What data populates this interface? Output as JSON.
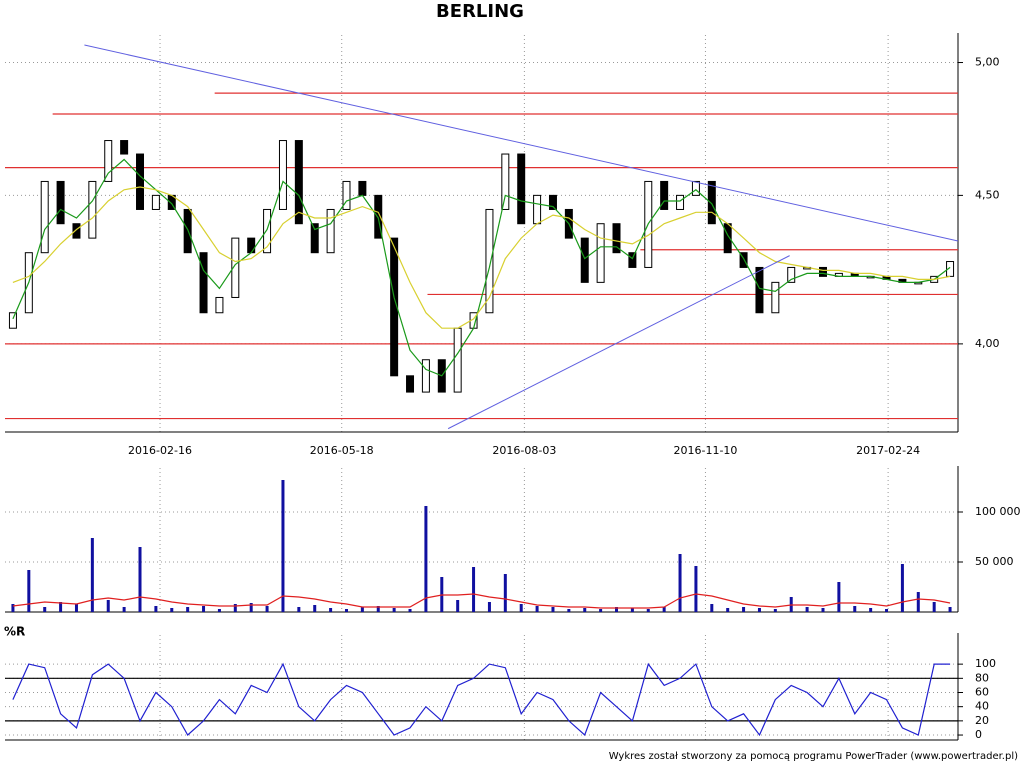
{
  "chart_data": [
    {
      "type": "candlestick",
      "title": "BERLING",
      "x": [
        0,
        1,
        2,
        3,
        4,
        5,
        6,
        7,
        8,
        9,
        10,
        11,
        12,
        13,
        14,
        15,
        16,
        17,
        18,
        19,
        20,
        21,
        22,
        23,
        24,
        25,
        26,
        27,
        28,
        29,
        30,
        31,
        32,
        33,
        34,
        35,
        36,
        37,
        38,
        39,
        40,
        41,
        42,
        43,
        44,
        45,
        46,
        47,
        48,
        49,
        50,
        51,
        52,
        53,
        54,
        55,
        56,
        57,
        58,
        59
      ],
      "open": [
        4.05,
        4.1,
        4.3,
        4.55,
        4.4,
        4.35,
        4.55,
        4.7,
        4.65,
        4.45,
        4.5,
        4.45,
        4.3,
        4.1,
        4.15,
        4.35,
        4.3,
        4.45,
        4.7,
        4.4,
        4.3,
        4.45,
        4.55,
        4.5,
        4.35,
        3.9,
        3.85,
        3.95,
        3.85,
        4.05,
        4.1,
        4.45,
        4.65,
        4.4,
        4.5,
        4.45,
        4.35,
        4.2,
        4.4,
        4.3,
        4.25,
        4.55,
        4.45,
        4.5,
        4.55,
        4.4,
        4.3,
        4.25,
        4.1,
        4.2,
        4.25,
        4.25,
        4.22,
        4.23,
        4.22,
        4.22,
        4.21,
        4.2,
        4.2,
        4.22
      ],
      "close": [
        4.1,
        4.3,
        4.55,
        4.4,
        4.35,
        4.55,
        4.7,
        4.65,
        4.45,
        4.5,
        4.45,
        4.3,
        4.1,
        4.15,
        4.35,
        4.3,
        4.45,
        4.7,
        4.4,
        4.3,
        4.45,
        4.55,
        4.5,
        4.35,
        3.9,
        3.85,
        3.95,
        3.85,
        4.05,
        4.1,
        4.45,
        4.65,
        4.4,
        4.5,
        4.45,
        4.35,
        4.2,
        4.4,
        4.3,
        4.25,
        4.55,
        4.45,
        4.5,
        4.55,
        4.4,
        4.3,
        4.25,
        4.1,
        4.2,
        4.25,
        4.25,
        4.22,
        4.23,
        4.22,
        4.22,
        4.21,
        4.2,
        4.2,
        4.22,
        4.27
      ],
      "up_color": "#ffffff",
      "down_color": "#000000",
      "lines": [
        {
          "color": "#1a9a1a",
          "values": [
            4.08,
            4.2,
            4.38,
            4.45,
            4.42,
            4.48,
            4.58,
            4.63,
            4.57,
            4.52,
            4.47,
            4.38,
            4.24,
            4.18,
            4.26,
            4.3,
            4.38,
            4.55,
            4.5,
            4.38,
            4.4,
            4.48,
            4.5,
            4.42,
            4.15,
            3.98,
            3.92,
            3.9,
            3.97,
            4.05,
            4.25,
            4.5,
            4.48,
            4.47,
            4.46,
            4.4,
            4.28,
            4.32,
            4.32,
            4.28,
            4.4,
            4.48,
            4.48,
            4.52,
            4.47,
            4.36,
            4.28,
            4.18,
            4.17,
            4.21,
            4.23,
            4.23,
            4.22,
            4.22,
            4.22,
            4.21,
            4.2,
            4.2,
            4.21,
            4.25
          ]
        },
        {
          "color": "#d8d030",
          "values": [
            4.2,
            4.22,
            4.27,
            4.33,
            4.38,
            4.42,
            4.48,
            4.52,
            4.53,
            4.52,
            4.5,
            4.46,
            4.38,
            4.3,
            4.27,
            4.28,
            4.32,
            4.4,
            4.44,
            4.42,
            4.42,
            4.44,
            4.46,
            4.44,
            4.32,
            4.2,
            4.1,
            4.05,
            4.05,
            4.08,
            4.15,
            4.28,
            4.35,
            4.4,
            4.43,
            4.42,
            4.38,
            4.35,
            4.34,
            4.33,
            4.36,
            4.4,
            4.42,
            4.44,
            4.44,
            4.4,
            4.35,
            4.3,
            4.27,
            4.26,
            4.25,
            4.24,
            4.24,
            4.23,
            4.23,
            4.22,
            4.22,
            4.21,
            4.21,
            4.22
          ]
        }
      ],
      "levels": [
        {
          "value": 4.88,
          "x0": 12.7
        },
        {
          "value": 4.8,
          "x0": 2.5
        },
        {
          "value": 4.6,
          "x0": -0.5
        },
        {
          "value": 4.31,
          "x0": 39.5
        },
        {
          "value": 4.16,
          "x0": 26.1
        },
        {
          "value": 4.0,
          "x0": -0.5
        },
        {
          "value": 3.77,
          "x0": -0.5
        }
      ],
      "level_color": "#e03030",
      "trend_lines": [
        {
          "x": [
            4.5,
            59.5
          ],
          "y": [
            5.07,
            4.34
          ]
        },
        {
          "x": [
            27.4,
            48.9
          ],
          "y": [
            3.74,
            4.29
          ]
        }
      ],
      "trend_color": "#6060e0",
      "xlim": [
        -0.5,
        59.5
      ],
      "ylim": [
        3.73,
        5.07
      ],
      "log_scale": true,
      "xticks": [
        {
          "value": 9.26,
          "label": "2016-02-16"
        },
        {
          "value": 20.7,
          "label": "2016-05-18"
        },
        {
          "value": 32.2,
          "label": "2016-08-03"
        },
        {
          "value": 43.6,
          "label": "2016-11-10"
        },
        {
          "value": 55.1,
          "label": "2017-02-24"
        }
      ],
      "yticks": [
        {
          "value": 4,
          "label": "4,00"
        },
        {
          "value": 4.5,
          "label": "4,50"
        },
        {
          "value": 5,
          "label": "5,00"
        }
      ],
      "grid": true
    },
    {
      "type": "bar",
      "x": [
        0,
        1,
        2,
        3,
        4,
        5,
        6,
        7,
        8,
        9,
        10,
        11,
        12,
        13,
        14,
        15,
        16,
        17,
        18,
        19,
        20,
        21,
        22,
        23,
        24,
        25,
        26,
        27,
        28,
        29,
        30,
        31,
        32,
        33,
        34,
        35,
        36,
        37,
        38,
        39,
        40,
        41,
        42,
        43,
        44,
        45,
        46,
        47,
        48,
        49,
        50,
        51,
        52,
        53,
        54,
        55,
        56,
        57,
        58,
        59
      ],
      "values": [
        8000,
        42000,
        5000,
        10000,
        8000,
        74000,
        12000,
        5000,
        65000,
        6000,
        4000,
        5000,
        6000,
        3000,
        8000,
        9000,
        6000,
        132000,
        5000,
        7000,
        4000,
        3000,
        5000,
        6000,
        4000,
        3000,
        106000,
        35000,
        12000,
        45000,
        10000,
        38000,
        8000,
        6000,
        5000,
        3000,
        4000,
        3000,
        5000,
        4000,
        3000,
        5000,
        58000,
        46000,
        8000,
        4000,
        5000,
        4000,
        3000,
        15000,
        5000,
        4000,
        30000,
        6000,
        4000,
        3000,
        48000,
        20000,
        10000,
        5000
      ],
      "color": "#1010a0",
      "lines": [
        {
          "color": "#e02020",
          "values": [
            6000,
            8000,
            10000,
            9000,
            8000,
            12000,
            14000,
            12000,
            15000,
            13000,
            10000,
            8000,
            7000,
            6000,
            6000,
            7000,
            7000,
            16000,
            15000,
            13000,
            10000,
            8000,
            5000,
            5000,
            5000,
            5000,
            14000,
            17000,
            17000,
            18000,
            15000,
            13000,
            10000,
            7000,
            6000,
            5000,
            5000,
            4000,
            4000,
            4000,
            4000,
            5000,
            14000,
            18000,
            16000,
            12000,
            8000,
            6000,
            5000,
            7000,
            7000,
            6000,
            9000,
            9000,
            8000,
            6000,
            10000,
            13000,
            12000,
            9000
          ]
        }
      ],
      "xlim": [
        -0.5,
        59.5
      ],
      "ylim": [
        0,
        134000
      ],
      "yticks": [
        {
          "value": 50000,
          "label": "50 000"
        },
        {
          "value": 100000,
          "label": "100 000"
        }
      ],
      "grid": true
    },
    {
      "type": "line",
      "title": "%R",
      "x": [
        0,
        1,
        2,
        3,
        4,
        5,
        6,
        7,
        8,
        9,
        10,
        11,
        12,
        13,
        14,
        15,
        16,
        17,
        18,
        19,
        20,
        21,
        22,
        23,
        24,
        25,
        26,
        27,
        28,
        29,
        30,
        31,
        32,
        33,
        34,
        35,
        36,
        37,
        38,
        39,
        40,
        41,
        42,
        43,
        44,
        45,
        46,
        47,
        48,
        49,
        50,
        51,
        52,
        53,
        54,
        55,
        56,
        57,
        58,
        59
      ],
      "values": [
        50,
        100,
        95,
        30,
        10,
        85,
        100,
        80,
        20,
        60,
        40,
        0,
        20,
        50,
        30,
        70,
        60,
        100,
        40,
        20,
        50,
        70,
        60,
        30,
        0,
        10,
        40,
        20,
        70,
        80,
        100,
        95,
        30,
        60,
        50,
        20,
        0,
        60,
        40,
        20,
        100,
        70,
        80,
        100,
        40,
        20,
        30,
        0,
        50,
        70,
        60,
        40,
        80,
        30,
        60,
        50,
        10,
        0,
        100,
        100
      ],
      "color": "#2020d0",
      "levels": [
        {
          "value": 20,
          "x0": -0.5
        },
        {
          "value": 80,
          "x0": -0.5
        }
      ],
      "level_color": "#000000",
      "xlim": [
        -0.5,
        59.5
      ],
      "ylim": [
        -7,
        127
      ],
      "yticks": [
        0,
        20,
        40,
        60,
        80,
        100
      ],
      "grid": true
    }
  ],
  "footer": "Wykres został stworzony za pomocą programu PowerTrader (www.powertrader.pl)"
}
